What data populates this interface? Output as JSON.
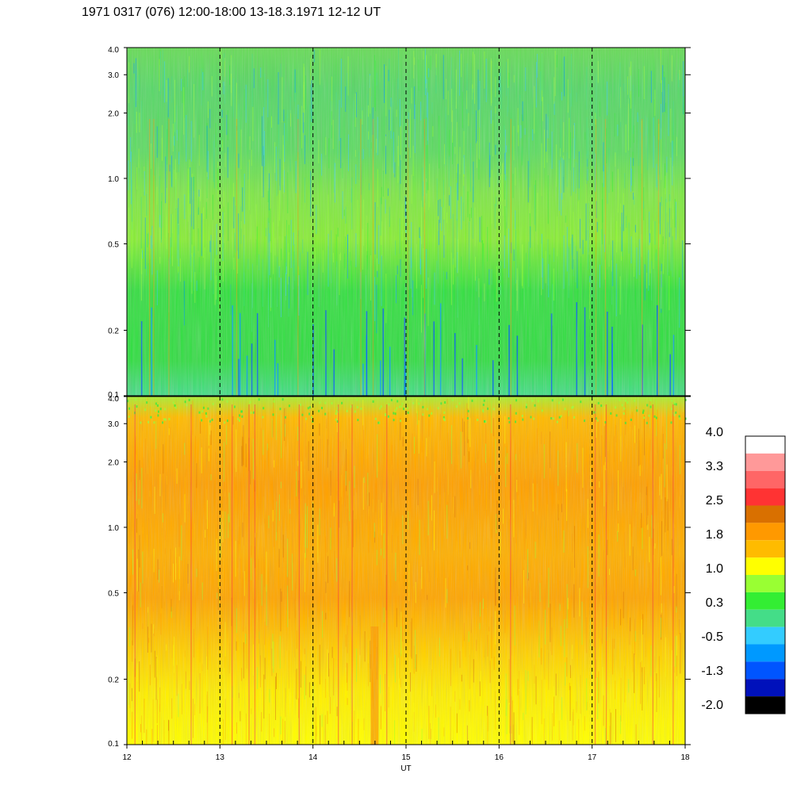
{
  "title": "1971 0317 (076) 12:00-18:00 13-18.3.1971  12-12 UT",
  "chart_data": {
    "type": "heatmap",
    "xlabel": "UT",
    "x_ticks": [
      "12",
      "13",
      "14",
      "15",
      "16",
      "17",
      "18"
    ],
    "xlim": [
      12,
      18
    ],
    "y_scale": "log",
    "ylim": [
      0.1,
      4.0
    ],
    "y_ticks": [
      {
        "value": 0.1,
        "label": "0.1"
      },
      {
        "value": 0.2,
        "label": "0.2"
      },
      {
        "value": 0.5,
        "label": "0.5"
      },
      {
        "value": 1.0,
        "label": "1.0"
      },
      {
        "value": 2.0,
        "label": "2.0"
      },
      {
        "value": 3.0,
        "label": "3.0"
      },
      {
        "value": 4.0,
        "label": "4.0"
      }
    ],
    "dashed_lines_at": [
      13,
      14,
      15,
      16,
      17
    ],
    "panels": [
      {
        "id": "top",
        "dominant_level": "green",
        "dominant_range": [
          0.3,
          1.0
        ]
      },
      {
        "id": "bottom",
        "dominant_level": "orange",
        "dominant_range": [
          1.0,
          2.5
        ]
      }
    ],
    "colorbar": {
      "labels": [
        "4.0",
        "3.3",
        "2.5",
        "1.8",
        "1.0",
        "0.3",
        "-0.5",
        "-1.3",
        "-2.0"
      ],
      "colors": [
        "#ffffff",
        "#ff9999",
        "#ff6666",
        "#ff3333",
        "#d97000",
        "#ff9900",
        "#ffbb00",
        "#ffff00",
        "#99ff33",
        "#33ee33",
        "#44dd88",
        "#33ccff",
        "#0099ff",
        "#0055ff",
        "#0011bb",
        "#000000"
      ]
    }
  }
}
